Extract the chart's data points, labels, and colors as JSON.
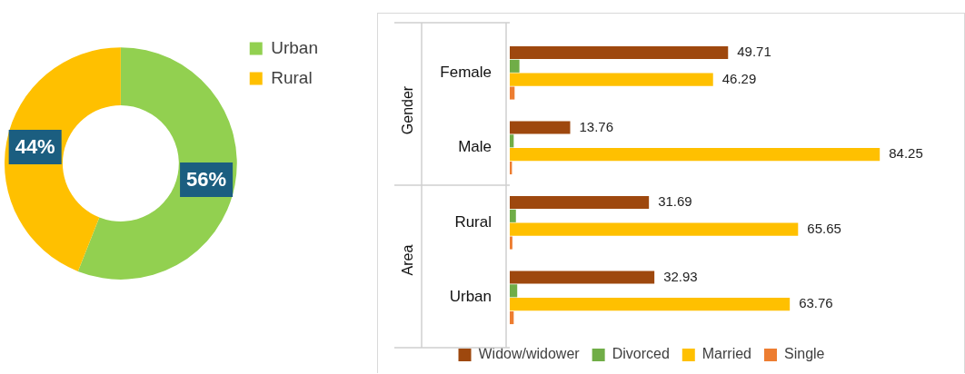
{
  "chart_data": [
    {
      "type": "donut",
      "categories": [
        "Urban",
        "Rural"
      ],
      "values": [
        56,
        44
      ],
      "value_labels": [
        "56%",
        "44%"
      ],
      "colors": [
        "#92d050",
        "#ffc000"
      ],
      "legend": "top right"
    },
    {
      "type": "bar",
      "orientation": "horizontal",
      "categories": [
        "Female",
        "Male",
        "Rural",
        "Urban"
      ],
      "annotations": [
        "Gender",
        "Area"
      ],
      "legend": "bottom",
      "grid": false,
      "tick_labels": "y",
      "series": [
        {
          "name": "Widow/widower",
          "color": "#9e480e",
          "values": [
            49.71,
            13.76,
            31.69,
            32.93
          ],
          "value_labels": [
            "49.71",
            "13.76",
            "31.69",
            "32.93"
          ]
        },
        {
          "name": "Divorced",
          "color": "#70ad47",
          "values": [
            2.2,
            0.9,
            1.4,
            1.7
          ],
          "value_labels": [
            null,
            null,
            null,
            null
          ]
        },
        {
          "name": "Married",
          "color": "#ffc000",
          "values": [
            46.29,
            84.25,
            65.65,
            63.76
          ],
          "value_labels": [
            "46.29",
            "84.25",
            "65.65",
            "63.76"
          ]
        },
        {
          "name": "Single",
          "color": "#ed7d31",
          "values": [
            1.1,
            0.5,
            0.6,
            0.9
          ],
          "value_labels": [
            null,
            null,
            null,
            null
          ]
        }
      ]
    }
  ]
}
